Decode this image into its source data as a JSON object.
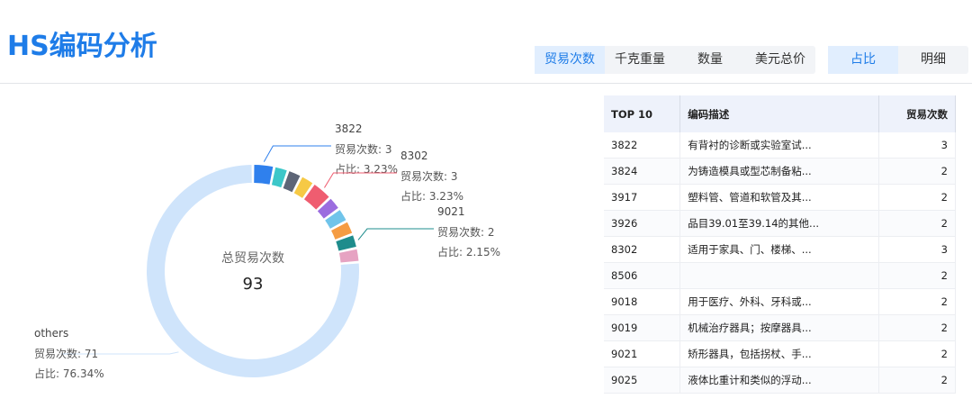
{
  "header": {
    "title": "HS编码分析",
    "tabs": [
      "贸易次数",
      "千克重量",
      "数量",
      "美元总价"
    ],
    "view_tabs": [
      "占比",
      "明细"
    ]
  },
  "donut": {
    "center_label": "总贸易次数",
    "total": 93,
    "slices": [
      {
        "name": "3822",
        "value": 3,
        "color": "#2f80ed",
        "count_label": "贸易次数: 3",
        "share_label": "占比: 3.23%"
      },
      {
        "name": "3824",
        "value": 2,
        "color": "#3cc7c9"
      },
      {
        "name": "3917",
        "value": 2,
        "color": "#5d6577"
      },
      {
        "name": "3926",
        "value": 2,
        "color": "#f6c945"
      },
      {
        "name": "8302",
        "value": 3,
        "color": "#ef5d70",
        "count_label": "贸易次数: 3",
        "share_label": "占比: 3.23%"
      },
      {
        "name": "8506",
        "value": 2,
        "color": "#9b6ddf"
      },
      {
        "name": "9018",
        "value": 2,
        "color": "#70c4ea"
      },
      {
        "name": "9019",
        "value": 2,
        "color": "#f59c43"
      },
      {
        "name": "9021",
        "value": 2,
        "color": "#1e8c8c",
        "count_label": "贸易次数: 2",
        "share_label": "占比: 2.15%"
      },
      {
        "name": "9025",
        "value": 2,
        "color": "#e6a3c2"
      },
      {
        "name": "others",
        "value": 71,
        "color": "#cfe4fb",
        "count_label": "贸易次数: 71",
        "share_label": "占比: 76.34%"
      }
    ]
  },
  "table": {
    "headers": [
      "TOP 10",
      "编码描述",
      "贸易次数"
    ],
    "rows": [
      [
        "3822",
        "有背衬的诊断或实验室试...",
        3
      ],
      [
        "3824",
        "为铸造模具或型芯制备粘...",
        2
      ],
      [
        "3917",
        "塑料管、管道和软管及其...",
        2
      ],
      [
        "3926",
        "品目39.01至39.14的其他...",
        2
      ],
      [
        "8302",
        "适用于家具、门、楼梯、...",
        3
      ],
      [
        "8506",
        "",
        2
      ],
      [
        "9018",
        "用于医疗、外科、牙科或...",
        2
      ],
      [
        "9019",
        "机械治疗器具；按摩器具...",
        2
      ],
      [
        "9021",
        "矫形器具，包括拐杖、手...",
        2
      ],
      [
        "9025",
        "液体比重计和类似的浮动...",
        2
      ]
    ]
  }
}
